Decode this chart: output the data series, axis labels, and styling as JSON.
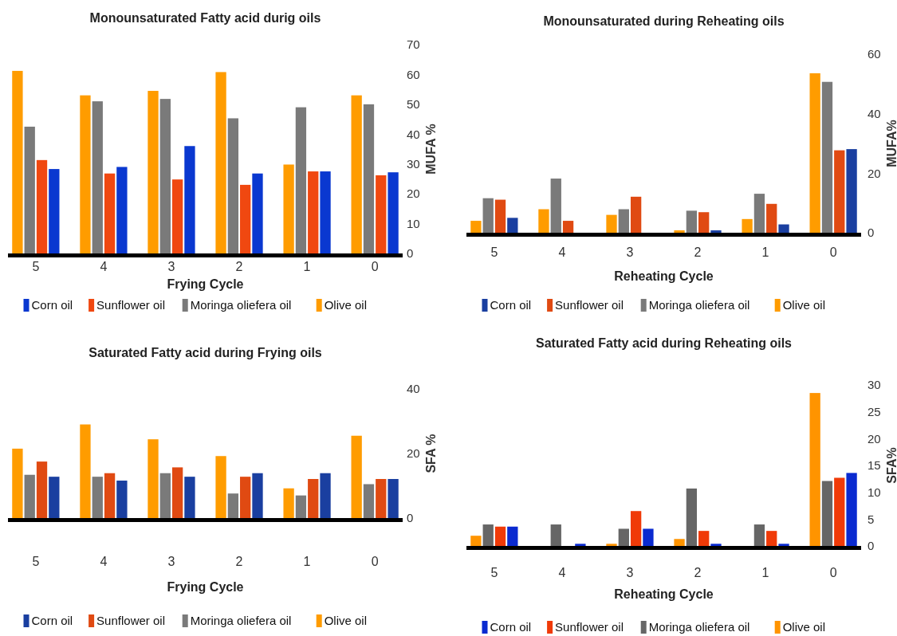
{
  "chart_data": [
    {
      "type": "bar",
      "title": "Monounsaturated Fatty acid durig oils",
      "xlabel": "Frying Cycle",
      "ylabel": "MUFA %",
      "categories": [
        "5",
        "4",
        "3",
        "2",
        "1",
        "0"
      ],
      "ylim": [
        0,
        70
      ],
      "yticks": [
        0,
        10,
        20,
        30,
        40,
        50,
        60,
        70
      ],
      "legend": "bottom",
      "series": [
        {
          "name": "Corn oil",
          "color": "#0a38d0",
          "values": [
            28.3,
            29,
            36,
            26.8,
            27.5,
            27.2
          ]
        },
        {
          "name": "Sunflower oil",
          "color": "#f04810",
          "values": [
            31.3,
            26.8,
            24.8,
            23,
            27.5,
            26.2
          ]
        },
        {
          "name": "Moringa oliefera oil",
          "color": "#7a7a7a",
          "values": [
            42.5,
            51,
            51.8,
            45.3,
            49,
            50
          ]
        },
        {
          "name": "Olive oil",
          "color": "#ff9c00",
          "values": [
            61.2,
            53,
            54.5,
            60.8,
            29.8,
            53
          ]
        }
      ]
    },
    {
      "type": "bar",
      "title": "Monounsaturated during Reheating oils",
      "xlabel": "Reheating Cycle",
      "ylabel": "MUFA%",
      "categories": [
        "5",
        "4",
        "3",
        "2",
        "1",
        "0"
      ],
      "ylim": [
        0,
        60
      ],
      "yticks": [
        0,
        20,
        40,
        60
      ],
      "legend": "bottom",
      "series": [
        {
          "name": "Corn oil",
          "color": "#1a3fa0",
          "values": [
            5,
            null,
            null,
            0.8,
            2.8,
            28.1
          ]
        },
        {
          "name": "Sunflower oil",
          "color": "#e04a12",
          "values": [
            11.1,
            4,
            12.1,
            6.9,
            9.7,
            27.7
          ]
        },
        {
          "name": "Moringa oliefera oil",
          "color": "#7a7a7a",
          "values": [
            11.6,
            18.2,
            7.9,
            7.4,
            13.1,
            50.7
          ]
        },
        {
          "name": "Olive oil",
          "color": "#ff9c00",
          "values": [
            4,
            7.9,
            6,
            0.8,
            4.6,
            53.6
          ]
        }
      ]
    },
    {
      "type": "bar",
      "title": "Saturated Fatty acid during Frying oils",
      "xlabel": "Frying Cycle",
      "ylabel": "SFA %",
      "categories": [
        "5",
        "4",
        "3",
        "2",
        "1",
        "0"
      ],
      "ylim": [
        0,
        40
      ],
      "yticks": [
        0,
        20,
        40
      ],
      "legend": "bottom",
      "series": [
        {
          "name": "Corn oil",
          "color": "#1a3fa0",
          "values": [
            12.8,
            11.6,
            12.8,
            13.9,
            13.9,
            12.1
          ]
        },
        {
          "name": "Sunflower oil",
          "color": "#e04a12",
          "values": [
            17.5,
            13.9,
            15.7,
            12.8,
            12.1,
            12.1
          ]
        },
        {
          "name": "Moringa oliefera oil",
          "color": "#7a7a7a",
          "values": [
            13.4,
            12.8,
            13.9,
            7.6,
            7,
            10.5
          ]
        },
        {
          "name": "Olive oil",
          "color": "#ff9c00",
          "values": [
            21.5,
            29,
            24.4,
            19.2,
            9.2,
            25.5
          ]
        }
      ]
    },
    {
      "type": "bar",
      "title": "Saturated Fatty acid during Reheating oils",
      "xlabel": "Reheating Cycle",
      "ylabel": "SFA%",
      "categories": [
        "5",
        "4",
        "3",
        "2",
        "1",
        "0"
      ],
      "ylim": [
        0,
        30
      ],
      "yticks": [
        0,
        5,
        10,
        15,
        20,
        25,
        30
      ],
      "legend": "bottom",
      "series": [
        {
          "name": "Corn oil",
          "color": "#0a2ad0",
          "values": [
            3.6,
            0.4,
            3.2,
            0.4,
            0.4,
            13.6
          ]
        },
        {
          "name": "Sunflower oil",
          "color": "#f03a08",
          "values": [
            3.6,
            null,
            6.5,
            2.8,
            2.8,
            12.7
          ]
        },
        {
          "name": "Moringa oliefera oil",
          "color": "#666666",
          "values": [
            4,
            4,
            3.2,
            10.7,
            4,
            12.1
          ]
        },
        {
          "name": "Olive oil",
          "color": "#ff9400",
          "values": [
            1.9,
            null,
            0.4,
            1.3,
            null,
            28.5
          ]
        }
      ]
    }
  ]
}
